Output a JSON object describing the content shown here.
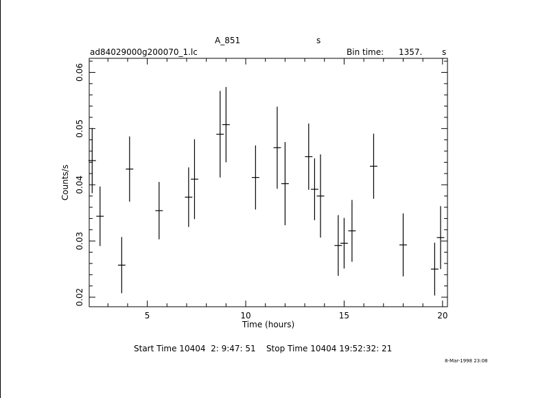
{
  "header": {
    "object": "A_851",
    "unit_hint": "s",
    "file_name": "ad84029000g200070_1.lc",
    "bin_time_label": "Bin time:",
    "bin_time_value": "1357.",
    "bin_time_unit": "s"
  },
  "footer": {
    "start_stop": "Start Time 10404  2: 9:47: 51    Stop Time 10404 19:52:32: 21",
    "plot_date": "8-Mar-1998 23:08"
  },
  "chart_data": {
    "type": "scatter",
    "title": "A_851",
    "xlabel": "Time (hours)",
    "ylabel": "Counts/s",
    "xlim": [
      2.05,
      20.25
    ],
    "ylim": [
      0.0183,
      0.0625
    ],
    "x_ticks": [
      5,
      10,
      15,
      20
    ],
    "y_ticks": [
      0.02,
      0.03,
      0.04,
      0.05,
      0.06
    ],
    "grid": false,
    "bin_halfwidth_hours": 0.19,
    "series": [
      {
        "points": [
          {
            "x": 2.2,
            "y": 0.0443,
            "err": 0.0058
          },
          {
            "x": 2.6,
            "y": 0.0344,
            "err": 0.0053
          },
          {
            "x": 3.7,
            "y": 0.0257,
            "err": 0.005
          },
          {
            "x": 4.1,
            "y": 0.0428,
            "err": 0.0058
          },
          {
            "x": 5.6,
            "y": 0.0354,
            "err": 0.0051
          },
          {
            "x": 7.1,
            "y": 0.0378,
            "err": 0.0053
          },
          {
            "x": 7.4,
            "y": 0.041,
            "err": 0.0071
          },
          {
            "x": 8.7,
            "y": 0.049,
            "err": 0.0077
          },
          {
            "x": 9.0,
            "y": 0.0507,
            "err": 0.0067
          },
          {
            "x": 10.5,
            "y": 0.0413,
            "err": 0.0057
          },
          {
            "x": 11.6,
            "y": 0.0466,
            "err": 0.0073
          },
          {
            "x": 12.0,
            "y": 0.0402,
            "err": 0.0074
          },
          {
            "x": 13.2,
            "y": 0.045,
            "err": 0.0059
          },
          {
            "x": 13.5,
            "y": 0.0392,
            "err": 0.0055
          },
          {
            "x": 13.8,
            "y": 0.038,
            "err": 0.0074
          },
          {
            "x": 14.7,
            "y": 0.0292,
            "err": 0.0054
          },
          {
            "x": 15.0,
            "y": 0.0296,
            "err": 0.0045
          },
          {
            "x": 15.4,
            "y": 0.0318,
            "err": 0.0055
          },
          {
            "x": 16.5,
            "y": 0.0433,
            "err": 0.0058
          },
          {
            "x": 18.0,
            "y": 0.0293,
            "err": 0.0056
          },
          {
            "x": 19.6,
            "y": 0.025,
            "err": 0.0047
          },
          {
            "x": 19.9,
            "y": 0.0306,
            "err": 0.0056
          }
        ]
      }
    ]
  }
}
